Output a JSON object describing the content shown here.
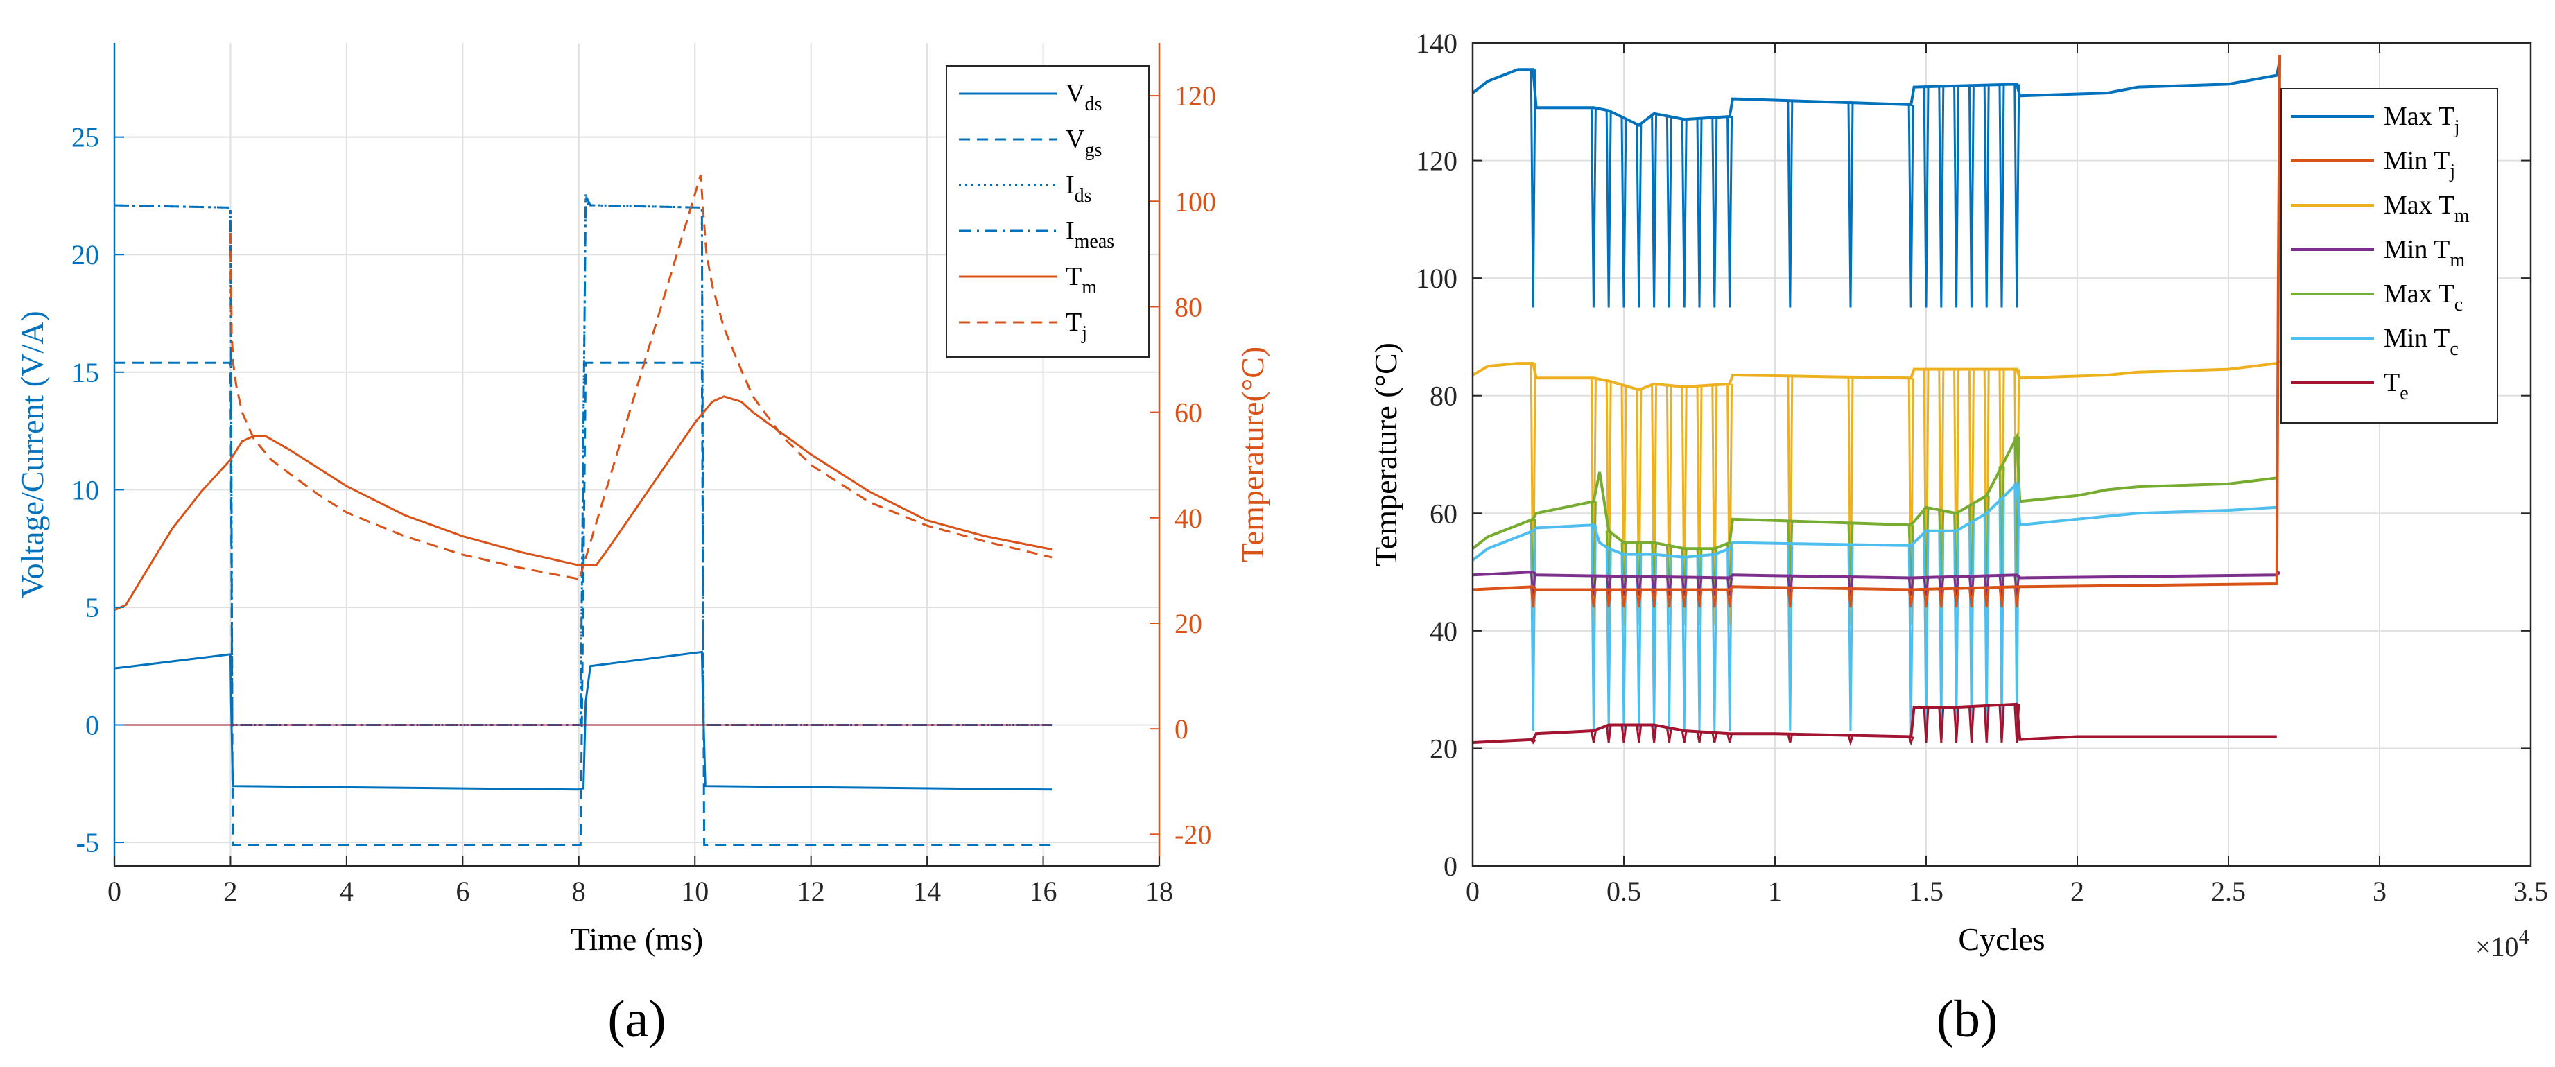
{
  "colors": {
    "left_axis": "#0072BD",
    "right_axis": "#D95319",
    "blue": "#0072BD",
    "orange": "#D95319",
    "yellow": "#EDB120",
    "purple": "#7E2F8E",
    "green": "#77AC30",
    "cyan": "#4DBEEE",
    "dark_red": "#A2142F",
    "grid": "#E0E0E0",
    "frame": "#262626"
  },
  "chart_data": [
    {
      "id": "a",
      "type": "line",
      "panel_label": "(a)",
      "xlabel": "Time (ms)",
      "ylabel_left": "Voltage/Current (V/A)",
      "ylabel_right": "Temperature(°C)",
      "xlim": [
        0,
        18
      ],
      "ylim_left": [
        -6,
        29
      ],
      "ylim_right": [
        -26,
        130
      ],
      "xticks": [
        "0",
        "2",
        "4",
        "6",
        "8",
        "10",
        "12",
        "14",
        "16",
        "18"
      ],
      "yticks_left": [
        "-5",
        "0",
        "5",
        "10",
        "15",
        "20",
        "25"
      ],
      "yticks_right": [
        "-20",
        "0",
        "20",
        "40",
        "60",
        "80",
        "100",
        "120"
      ],
      "grid": true,
      "legend_position": "top-right",
      "legend": [
        {
          "base": "V",
          "sub": "ds"
        },
        {
          "base": "V",
          "sub": "gs"
        },
        {
          "base": "I",
          "sub": "ds"
        },
        {
          "base": "I",
          "sub": "meas"
        },
        {
          "base": "T",
          "sub": "m"
        },
        {
          "base": "T",
          "sub": "j"
        }
      ],
      "series": [
        {
          "name": "Vds",
          "axis": "left",
          "style": "solid",
          "color": "#0072BD",
          "x": [
            0,
            2.0,
            2.01,
            2.04,
            8.0,
            8.08,
            8.12,
            8.2,
            10.12,
            10.14,
            10.18,
            16.15
          ],
          "y": [
            2.4,
            3.0,
            1.0,
            -2.6,
            -2.75,
            -2.7,
            1.0,
            2.5,
            3.1,
            1.0,
            -2.6,
            -2.75
          ]
        },
        {
          "name": "Vgs",
          "axis": "left",
          "style": "dashed",
          "color": "#0072BD",
          "x": [
            0,
            2.0,
            2.04,
            8.03,
            8.12,
            10.12,
            10.16,
            16.15
          ],
          "y": [
            15.4,
            15.4,
            -5.1,
            -5.1,
            15.4,
            15.4,
            -5.1,
            -5.1
          ]
        },
        {
          "name": "Ids",
          "axis": "left",
          "style": "dotted",
          "color": "#0072BD",
          "x": [
            0,
            2.0,
            2.03,
            8.03,
            8.12,
            8.16,
            8.3,
            10.12,
            10.15,
            16.15
          ],
          "y": [
            22.1,
            22.0,
            0.0,
            0.0,
            22.6,
            22.1,
            22.1,
            22.0,
            0.0,
            0.0
          ]
        },
        {
          "name": "Imeas",
          "axis": "left",
          "style": "dashdot",
          "color": "#0072BD",
          "x": [
            0,
            2.0,
            2.03,
            8.03,
            8.12,
            8.2,
            10.12,
            10.15,
            16.15
          ],
          "y": [
            22.1,
            22.0,
            0.0,
            0.0,
            22.5,
            22.1,
            22.0,
            0.0,
            0.0
          ]
        },
        {
          "name": "Tm",
          "axis": "right",
          "style": "solid",
          "color": "#D95319",
          "x": [
            0,
            0.2,
            0.5,
            1.0,
            1.5,
            2.0,
            2.2,
            2.4,
            2.6,
            3.0,
            4.0,
            5.0,
            6.0,
            7.0,
            8.0,
            8.3,
            8.5,
            9.0,
            9.5,
            10.0,
            10.3,
            10.5,
            10.8,
            11.0,
            12.0,
            13.0,
            14.0,
            15.0,
            16.15
          ],
          "y": [
            22.5,
            23.5,
            29,
            38,
            45,
            51,
            54.5,
            55.5,
            55.5,
            53,
            46,
            40.5,
            36.5,
            33.5,
            31,
            31,
            34,
            42,
            50,
            58,
            62,
            63,
            62,
            60,
            52,
            45,
            39.5,
            36.5,
            34
          ]
        },
        {
          "name": "Tj",
          "axis": "right",
          "style": "dashed",
          "color": "#D95319",
          "x": [
            2.0,
            2.02,
            2.05,
            2.1,
            2.2,
            2.4,
            2.7,
            3.0,
            3.5,
            4.0,
            5.0,
            6.0,
            7.0,
            7.95,
            8.0,
            10.1,
            10.15,
            10.2,
            10.3,
            10.5,
            10.8,
            11.0,
            11.5,
            12.0,
            13.0,
            14.0,
            15.0,
            16.15
          ],
          "y": [
            94,
            75,
            69,
            65,
            60,
            55,
            51,
            48.5,
            44.5,
            41,
            36.5,
            33,
            30.5,
            28.5,
            28,
            105,
            97,
            90,
            84,
            76,
            68,
            63,
            55.5,
            50,
            43,
            38.5,
            35.5,
            32.5
          ]
        },
        {
          "name": "baseline",
          "axis": "left",
          "style": "solid",
          "color": "#A2142F",
          "x": [
            0,
            16.15
          ],
          "y": [
            0,
            0
          ]
        }
      ]
    },
    {
      "id": "b",
      "type": "line",
      "panel_label": "(b)",
      "xlabel": "Cycles",
      "ylabel": "Temperature (°C)",
      "x_multiplier": "×10",
      "x_multiplier_exp": "4",
      "xlim": [
        0,
        3.5
      ],
      "ylim": [
        0,
        140
      ],
      "xticks": [
        "0",
        "0.5",
        "1",
        "1.5",
        "2",
        "2.5",
        "3",
        "3.5"
      ],
      "yticks": [
        "0",
        "20",
        "40",
        "60",
        "80",
        "100",
        "120",
        "140"
      ],
      "grid": true,
      "legend_position": "top-right",
      "legend": [
        {
          "base": "Max T",
          "sub": "j",
          "color": "#0072BD"
        },
        {
          "base": "Min T",
          "sub": "j",
          "color": "#D95319"
        },
        {
          "base": "Max T",
          "sub": "m",
          "color": "#EDB120"
        },
        {
          "base": "Min T",
          "sub": "m",
          "color": "#7E2F8E"
        },
        {
          "base": "Max T",
          "sub": "c",
          "color": "#77AC30"
        },
        {
          "base": "Min T",
          "sub": "c",
          "color": "#4DBEEE"
        },
        {
          "base": "T",
          "sub": "e",
          "color": "#A2142F"
        }
      ],
      "dips": [
        0.2,
        0.4,
        0.45,
        0.5,
        0.55,
        0.6,
        0.65,
        0.7,
        0.75,
        0.8,
        0.85,
        1.05,
        1.25,
        1.45,
        1.5,
        1.55,
        1.6,
        1.65,
        1.7,
        1.75,
        1.8
      ],
      "series": [
        {
          "name": "Max Tj",
          "color": "#0072BD",
          "dip_to": 95,
          "x": [
            0,
            0.05,
            0.15,
            0.2,
            0.21,
            0.4,
            0.45,
            0.55,
            0.6,
            0.7,
            0.85,
            0.86,
            1.45,
            1.46,
            1.8,
            1.81,
            2.1,
            2.2,
            2.5,
            2.66,
            2.67
          ],
          "y": [
            131.5,
            133.5,
            135.5,
            135.5,
            129,
            129,
            128.5,
            126,
            128,
            127,
            127.5,
            130.5,
            129.5,
            132.5,
            133,
            131,
            131.5,
            132.5,
            133,
            134.5,
            137
          ]
        },
        {
          "name": "Max Tm",
          "color": "#EDB120",
          "dip_to": 41,
          "x": [
            0,
            0.05,
            0.15,
            0.2,
            0.21,
            0.4,
            0.45,
            0.55,
            0.6,
            0.7,
            0.85,
            0.86,
            1.45,
            1.46,
            1.8,
            1.81,
            2.1,
            2.2,
            2.5,
            2.66,
            2.67
          ],
          "y": [
            83.5,
            85,
            85.5,
            85.5,
            83,
            83,
            82.5,
            81,
            82,
            81.5,
            82,
            83.5,
            83,
            84.5,
            84.5,
            83,
            83.5,
            84,
            84.5,
            85.5,
            86
          ]
        },
        {
          "name": "Max Tc",
          "color": "#77AC30",
          "dip_to": 46,
          "x": [
            0,
            0.05,
            0.15,
            0.2,
            0.21,
            0.4,
            0.42,
            0.45,
            0.5,
            0.6,
            0.7,
            0.8,
            0.85,
            0.86,
            1.45,
            1.5,
            1.6,
            1.7,
            1.8,
            1.81,
            2.0,
            2.1,
            2.2,
            2.5,
            2.66
          ],
          "y": [
            54,
            56,
            58,
            59,
            60,
            62,
            67,
            57,
            55,
            55,
            54,
            54,
            55,
            59,
            58,
            61,
            60,
            63,
            73,
            62,
            63,
            64,
            64.5,
            65,
            66
          ]
        },
        {
          "name": "Min Tc",
          "color": "#4DBEEE",
          "dip_to": 23,
          "x": [
            0,
            0.05,
            0.15,
            0.2,
            0.21,
            0.4,
            0.42,
            0.45,
            0.5,
            0.6,
            0.7,
            0.8,
            0.85,
            0.86,
            1.45,
            1.5,
            1.6,
            1.7,
            1.8,
            1.81,
            2.0,
            2.1,
            2.2,
            2.5,
            2.66
          ],
          "y": [
            52,
            54,
            56,
            57,
            57.5,
            58,
            55,
            54,
            53,
            53,
            52.5,
            53,
            54,
            55,
            54.5,
            57,
            57,
            60,
            65,
            58,
            59,
            59.5,
            60,
            60.5,
            61
          ]
        },
        {
          "name": "Min Tm",
          "color": "#7E2F8E",
          "dip_to": 46,
          "x": [
            0,
            0.2,
            0.21,
            0.85,
            0.86,
            1.45,
            1.8,
            1.81,
            2.66,
            2.67
          ],
          "y": [
            49.5,
            50,
            49.5,
            49,
            49.5,
            49,
            49.5,
            49,
            49.5,
            50
          ]
        },
        {
          "name": "Min Tj",
          "color": "#D95319",
          "dip_to": 44,
          "x": [
            0,
            0.2,
            0.21,
            0.85,
            0.86,
            1.45,
            1.8,
            1.81,
            2.66,
            2.665,
            2.67
          ],
          "y": [
            47,
            47.5,
            47,
            47,
            47.5,
            47,
            47.5,
            47.5,
            48,
            100,
            138
          ]
        },
        {
          "name": "Te",
          "color": "#A2142F",
          "dip_to": 21,
          "x": [
            0,
            0.2,
            0.21,
            0.4,
            0.45,
            0.6,
            0.7,
            0.85,
            1.0,
            1.45,
            1.46,
            1.6,
            1.8,
            1.81,
            2.0,
            2.66
          ],
          "y": [
            21,
            21.5,
            22.5,
            23,
            24,
            24,
            23,
            22.5,
            22.5,
            22,
            27,
            27,
            27.5,
            21.5,
            22,
            22
          ]
        }
      ]
    }
  ]
}
